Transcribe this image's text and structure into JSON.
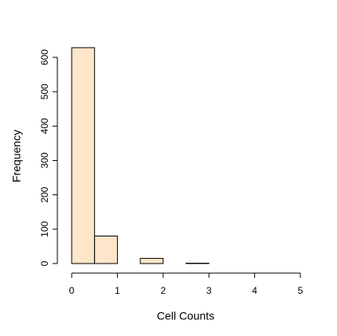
{
  "chart_data": {
    "type": "histogram",
    "xlabel": "Cell Counts",
    "ylabel": "Frequency",
    "bins": [
      0,
      0.5,
      1,
      1.5,
      2,
      2.5,
      3,
      3.5,
      4,
      4.5,
      5
    ],
    "values": [
      628,
      80,
      0,
      15,
      0,
      1,
      0,
      0,
      0,
      0
    ],
    "color": "#fde6c9",
    "xlim": [
      0,
      5
    ],
    "xticks": [
      0,
      1,
      2,
      3,
      4,
      5
    ],
    "ylim": [
      0,
      600
    ],
    "yticks": [
      0,
      100,
      200,
      300,
      400,
      500,
      600
    ]
  }
}
